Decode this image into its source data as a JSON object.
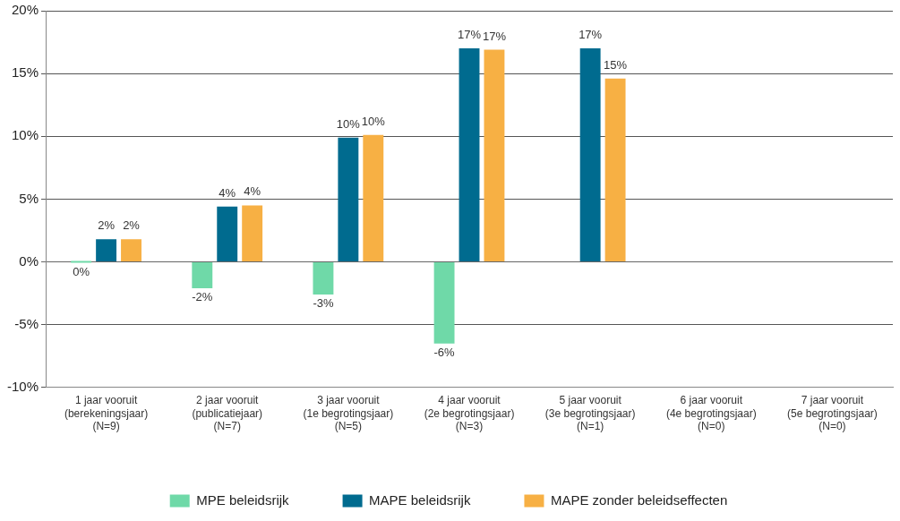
{
  "chart_data": {
    "type": "bar",
    "categories": [
      "1 jaar vooruit\n(berekeningsjaar)\n(N=9)",
      "2 jaar vooruit\n(publicatiejaar)\n(N=7)",
      "3 jaar vooruit\n(1e begrotingsjaar)\n(N=5)",
      "4 jaar vooruit\n(2e begrotingsjaar)\n(N=3)",
      "5 jaar vooruit\n(3e begrotingsjaar)\n(N=1)",
      "6 jaar vooruit\n(4e begrotingsjaar)\n(N=0)",
      "7 jaar vooruit\n(5e begrotingsjaar)\n(N=0)"
    ],
    "series": [
      {
        "name": "MPE beleidsrijk",
        "color": "#6fd9a8",
        "values": [
          0,
          -2.1,
          -2.6,
          -6.5,
          null,
          null,
          null
        ],
        "value_labels": [
          "0%",
          "-2%",
          "-3%",
          "-6%",
          null,
          null,
          null
        ]
      },
      {
        "name": "MAPE beleidsrijk",
        "color": "#006b8f",
        "values": [
          1.8,
          4.4,
          9.9,
          17.0,
          17.0,
          null,
          null
        ],
        "value_labels": [
          "2%",
          "4%",
          "10%",
          "17%",
          "17%",
          null,
          null
        ]
      },
      {
        "name": "MAPE zonder beleidseffecten",
        "color": "#f7b044",
        "values": [
          1.8,
          4.5,
          10.1,
          16.9,
          14.6,
          null,
          null
        ],
        "value_labels": [
          "2%",
          "4%",
          "10%",
          "17%",
          "15%",
          null,
          null
        ]
      }
    ],
    "ylim": [
      -10,
      20
    ],
    "yticks": [
      {
        "value": -10,
        "label": "-10%"
      },
      {
        "value": -5,
        "label": "-5%"
      },
      {
        "value": 0,
        "label": "0%"
      },
      {
        "value": 5,
        "label": "5%"
      },
      {
        "value": 10,
        "label": "10%"
      },
      {
        "value": 15,
        "label": "15%"
      },
      {
        "value": 20,
        "label": "20%"
      }
    ],
    "grid": "y",
    "legend": "bottom"
  }
}
